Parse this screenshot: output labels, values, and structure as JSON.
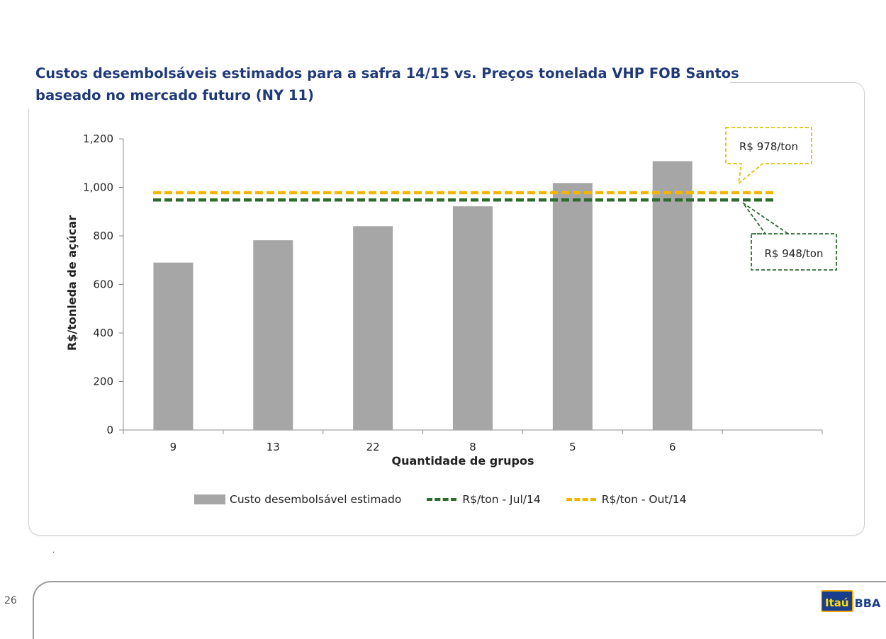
{
  "page": {
    "title_line1": "Custos desembolsáveis estimados para a safra 14/15 vs. Preços tonelada VHP FOB Santos",
    "title_line2": "baseado no mercado futuro (NY 11)",
    "page_number": "26",
    "mark": ".",
    "logo_icon_text": "Itaú",
    "logo_text": "BBA"
  },
  "chart_data": {
    "type": "bar",
    "title": "",
    "xlabel": "Quantidade de grupos",
    "ylabel": "R$/tonleda de açúcar",
    "ylim": [
      0,
      1200
    ],
    "yticks": [
      0,
      200,
      400,
      600,
      800,
      1000,
      1200
    ],
    "ytick_labels": [
      "0",
      "200",
      "400",
      "600",
      "800",
      "1,000",
      "1,200"
    ],
    "categories": [
      "9",
      "13",
      "22",
      "8",
      "5",
      "6",
      ""
    ],
    "series": [
      {
        "name": "Custo desembolsável estimado",
        "type": "bar",
        "color": "#a6a6a6",
        "values": [
          690,
          782,
          840,
          922,
          1018,
          1108,
          null
        ]
      },
      {
        "name": "R$/ton - Jul/14",
        "type": "line",
        "style": "dashed",
        "color": "#2e6b2f",
        "value": 948
      },
      {
        "name": "R$/ton - Out/14",
        "type": "line",
        "style": "dashed",
        "color": "#f2b600",
        "value": 978
      }
    ],
    "annotations": [
      {
        "text": "R$ 978/ton",
        "series": "R$/ton - Out/14",
        "border_color": "#e0c200"
      },
      {
        "text": "R$ 948/ton",
        "series": "R$/ton - Jul/14",
        "border_color": "#2e6b2f"
      }
    ],
    "legend_position": "bottom",
    "grid": false
  }
}
